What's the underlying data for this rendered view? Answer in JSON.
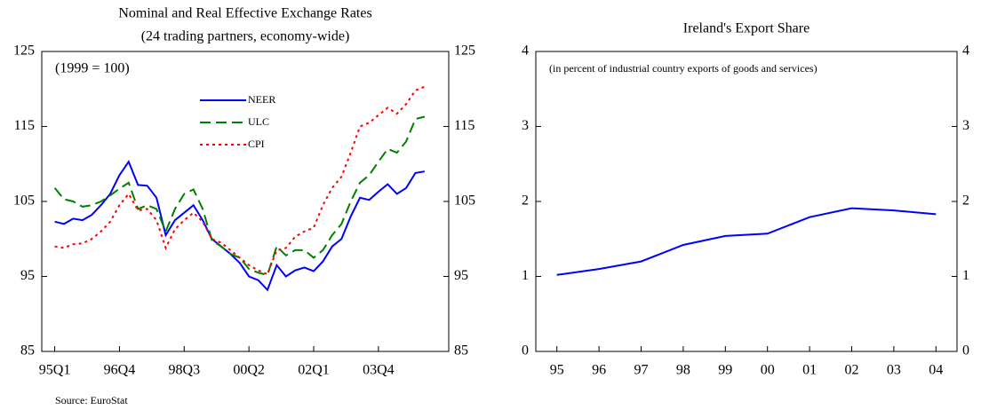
{
  "chart_data": [
    {
      "type": "line",
      "title": "Nominal and Real Effective Exchange Rates",
      "subtitle": "(24 trading partners, economy-wide)",
      "annotation": "(1999 = 100)",
      "source": "Source: EuroStat",
      "categories": [
        "95Q1",
        null,
        null,
        null,
        null,
        null,
        null,
        "96Q4",
        null,
        null,
        null,
        null,
        null,
        null,
        "98Q3",
        null,
        null,
        null,
        null,
        null,
        null,
        "00Q2",
        null,
        null,
        null,
        null,
        null,
        null,
        "02Q1",
        null,
        null,
        null,
        null,
        null,
        null,
        "03Q4",
        null,
        null,
        null,
        null,
        null
      ],
      "series": [
        {
          "name": "NEER",
          "color": "#0000ff",
          "dash": "solid",
          "values": [
            102.3,
            102,
            102.7,
            102.5,
            103.2,
            104.5,
            106,
            108.5,
            110.3,
            107.2,
            107.1,
            105.5,
            100.5,
            102.5,
            103.5,
            104.5,
            102.5,
            100,
            99,
            98,
            96.8,
            95,
            94.5,
            93.2,
            96.5,
            95,
            95.8,
            96.2,
            95.7,
            97,
            99,
            100,
            103,
            105.5,
            105.2,
            106.3,
            107.3,
            106,
            106.8,
            108.8,
            109
          ]
        },
        {
          "name": "ULC",
          "color": "#008000",
          "dash": "dashed",
          "values": [
            106.8,
            105.3,
            105,
            104.3,
            104.5,
            105,
            105.8,
            106.7,
            107.5,
            104,
            104.5,
            104,
            101,
            104,
            106,
            106.6,
            104,
            99.8,
            99,
            98,
            97.5,
            96,
            95.5,
            95.2,
            99,
            97.8,
            98.5,
            98.5,
            97.5,
            98.5,
            100.5,
            102,
            105,
            107.5,
            108.5,
            110.3,
            112,
            111.5,
            113,
            116,
            116.3
          ]
        },
        {
          "name": "CPI",
          "color": "#ff0000",
          "dash": "dotted",
          "values": [
            99,
            98.8,
            99.3,
            99.4,
            100,
            101,
            102.3,
            104.5,
            106,
            103.8,
            104,
            102.5,
            98.8,
            101.3,
            102.5,
            103.5,
            102.3,
            100,
            99.5,
            98.5,
            97.5,
            96.5,
            95.8,
            95.3,
            98.5,
            98.8,
            100.3,
            101,
            101.5,
            104.5,
            106.8,
            108.3,
            111.5,
            115,
            115.5,
            116.5,
            117.5,
            116.7,
            118,
            119.8,
            120.3
          ]
        }
      ],
      "ylim": [
        85,
        125
      ],
      "yticks": [
        85,
        95,
        105,
        115,
        125
      ],
      "y2lim": [
        85,
        125
      ],
      "y2ticks": [
        85,
        95,
        105,
        115,
        125
      ]
    },
    {
      "type": "line",
      "title": "Ireland's Export Share",
      "annotation": "(in percent of industrial country exports of goods and services)",
      "categories": [
        "95",
        "96",
        "97",
        "98",
        "99",
        "00",
        "01",
        "02",
        "03",
        "04"
      ],
      "series": [
        {
          "color": "#0000ff",
          "dash": "solid",
          "values": [
            1.02,
            1.1,
            1.2,
            1.42,
            1.54,
            1.57,
            1.79,
            1.91,
            1.88,
            1.83
          ]
        }
      ],
      "ylim": [
        0,
        4
      ],
      "yticks": [
        0,
        1,
        2,
        3,
        4
      ],
      "y2lim": [
        0,
        4
      ],
      "y2ticks": [
        0,
        1,
        2,
        3,
        4
      ]
    }
  ]
}
